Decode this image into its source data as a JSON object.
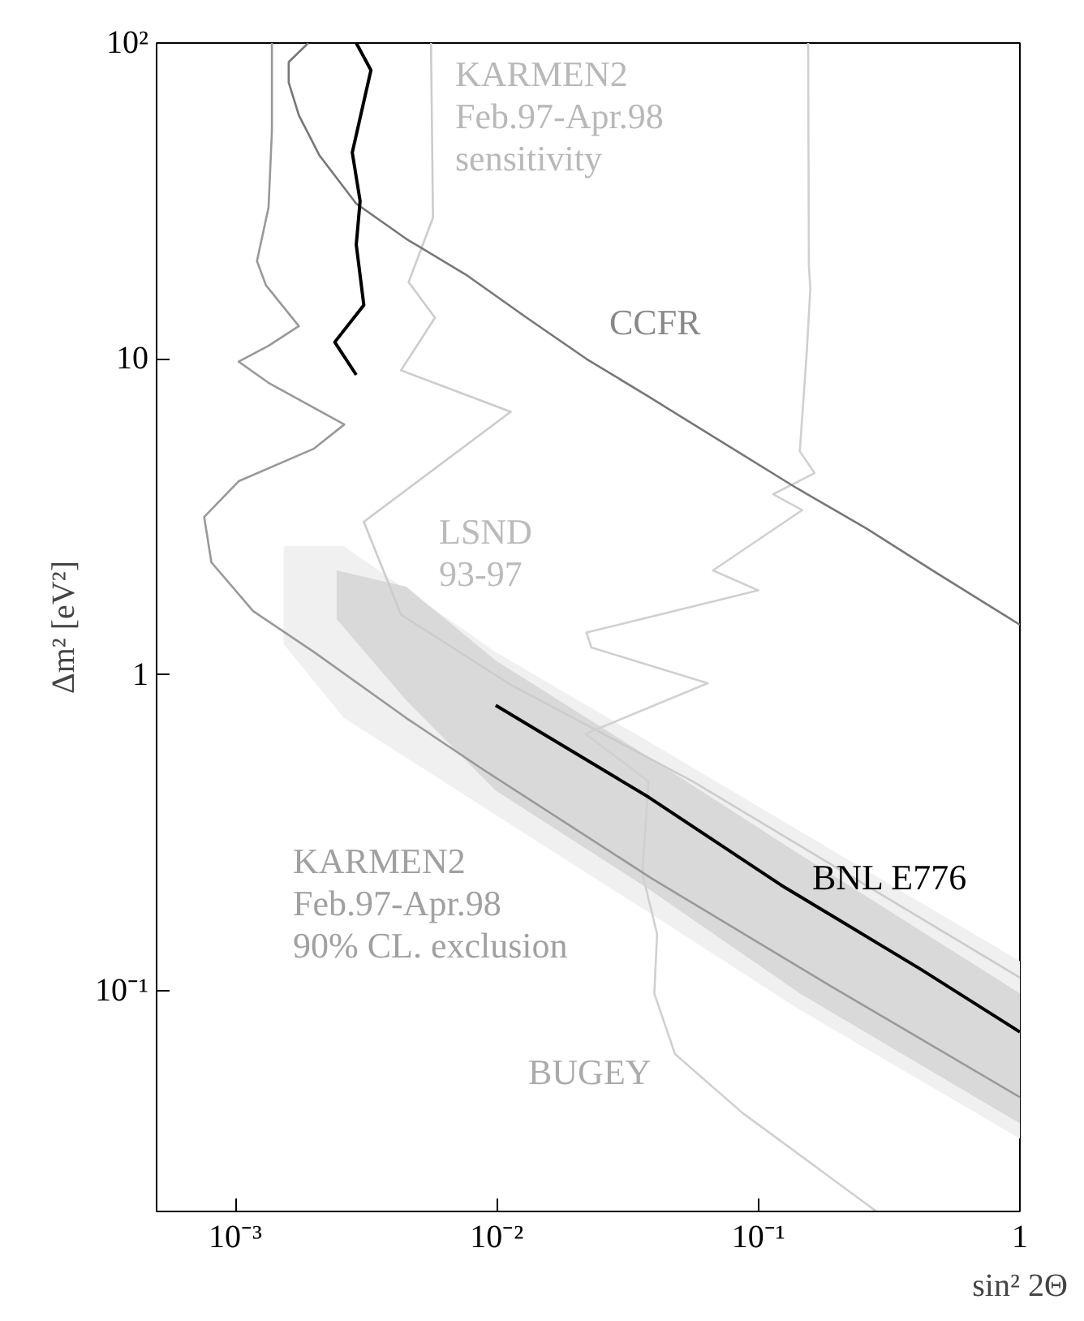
{
  "chart_data": {
    "type": "line",
    "xlabel": "sin² 2Θ",
    "ylabel": "Δm² [eV²]",
    "log": "xy",
    "grid": false,
    "xlim": [
      0.0005,
      1
    ],
    "ylim": [
      0.02,
      100
    ],
    "xticks": [
      {
        "value": 0.001,
        "label": "10⁻³"
      },
      {
        "value": 0.01,
        "label": "10⁻²"
      },
      {
        "value": 0.1,
        "label": "10⁻¹"
      },
      1
    ],
    "yticks": [
      {
        "value": 0.1,
        "label": "10⁻¹"
      },
      1,
      10,
      {
        "value": 100,
        "label": "10²"
      }
    ],
    "series": [
      {
        "type": "area",
        "color": "#f0f0f0",
        "x": [
          0.00153,
          0.0026,
          0.0099,
          0.038,
          0.144,
          1.0
        ],
        "values": [
          null,
          null,
          null,
          null,
          null,
          null
        ],
        "upper": [
          2.55,
          2.55,
          1.18,
          0.615,
          0.32,
          0.124
        ],
        "lower": [
          1.25,
          0.73,
          0.36,
          0.177,
          0.087,
          0.034
        ]
      },
      {
        "type": "area",
        "color": "#d9d9d9",
        "x": [
          0.00244,
          0.0045,
          0.0099,
          0.038,
          0.144,
          1.0
        ],
        "values": [
          null,
          null,
          null,
          null,
          null,
          null
        ],
        "upper": [
          2.14,
          1.9,
          1.11,
          0.55,
          0.27,
          0.098
        ],
        "lower": [
          1.5,
          0.83,
          0.43,
          0.21,
          0.098,
          0.038
        ]
      },
      {
        "color": "#cccccc",
        "x": [
          0.0056,
          0.0057,
          0.0046,
          0.0058,
          0.0043,
          0.0113,
          0.0031,
          0.0043,
          0.0113,
          0.056,
          1.0
        ],
        "values": [
          100,
          28,
          17.5,
          13.5,
          9.2,
          6.8,
          3.05,
          1.55,
          0.93,
          0.46,
          0.11
        ]
      },
      {
        "color": "#d0d0d0",
        "x": [
          0.155,
          0.156,
          0.158,
          0.153,
          0.144,
          0.164,
          0.114,
          0.147,
          0.067,
          0.1,
          0.022,
          0.023,
          0.064,
          0.0218,
          0.038,
          0.036,
          0.041,
          0.04,
          0.048,
          0.087,
          0.283
        ],
        "values": [
          100,
          19.7,
          16.7,
          10.4,
          5.1,
          4.35,
          3.73,
          3.32,
          2.14,
          1.85,
          1.36,
          1.22,
          0.94,
          0.65,
          0.46,
          0.235,
          0.151,
          0.098,
          0.063,
          0.041,
          0.02
        ]
      },
      {
        "color": "#999999",
        "x": [
          0.00138,
          0.00138,
          0.00134,
          0.00121,
          0.00131,
          0.00175,
          0.00134,
          0.00103,
          0.00134,
          0.00261,
          0.002,
          0.00103,
          0.00076,
          0.00081,
          0.00117,
          0.002,
          0.0045,
          0.0089,
          0.039,
          0.187,
          1.0
        ],
        "values": [
          100,
          52.7,
          30.2,
          20.4,
          17.1,
          12.7,
          11.0,
          9.8,
          8.4,
          6.2,
          5.2,
          4.1,
          3.16,
          2.27,
          1.59,
          1.18,
          0.73,
          0.5,
          0.227,
          0.104,
          0.046
        ]
      },
      {
        "color": "#777777",
        "x": [
          0.0019,
          0.0016,
          0.0016,
          0.00175,
          0.0021,
          0.0029,
          0.0045,
          0.0076,
          0.013,
          0.022,
          0.038,
          0.074,
          0.14,
          0.26,
          0.48,
          1.0
        ],
        "values": [
          100,
          87,
          75,
          59,
          44,
          31,
          24,
          18.5,
          13.5,
          10,
          7.6,
          5.4,
          3.9,
          2.9,
          2.1,
          1.44
        ]
      },
      {
        "color": "#000000",
        "x": [
          0.0029,
          0.0033,
          0.0028,
          0.003,
          0.0029,
          0.0031,
          0.0024,
          0.0029
        ],
        "values": [
          100,
          82,
          45,
          31.6,
          23,
          14.8,
          11.3,
          8.9
        ]
      },
      {
        "color": "#000000",
        "x": [
          0.0099,
          0.038,
          0.122,
          0.417,
          1.0
        ],
        "values": [
          0.8,
          0.41,
          0.216,
          0.117,
          0.074
        ]
      }
    ],
    "annotations": [
      "KARMEN2\nFeb.97-Apr.98\nsensitivity",
      "CCFR",
      "LSND\n93-97",
      "KARMEN2\nFeb.97-Apr.98\n90% CL. exclusion",
      "BNL E776",
      "BUGEY"
    ]
  }
}
